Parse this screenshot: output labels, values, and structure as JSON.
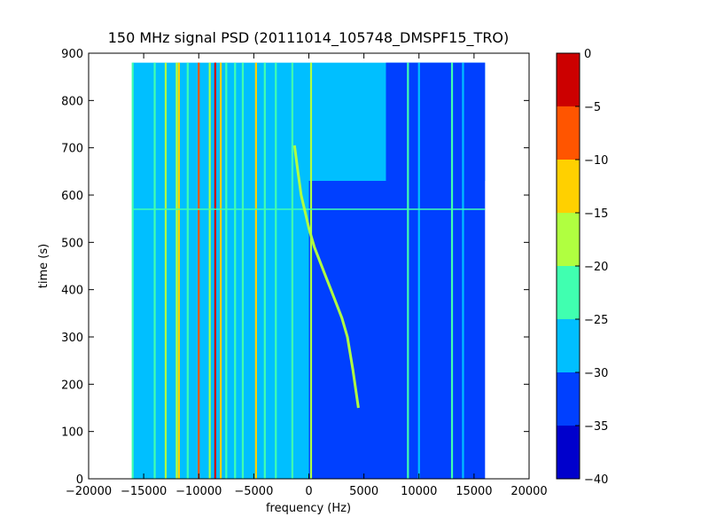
{
  "chart_data": {
    "type": "heatmap",
    "title": "150 MHz signal PSD (20111014_105748_DMSPF15_TRO)",
    "xlabel": "frequency (Hz)",
    "ylabel": "time (s)",
    "xlim": [
      -20000,
      20000
    ],
    "ylim": [
      0,
      900
    ],
    "xticks": [
      -20000,
      -15000,
      -10000,
      -5000,
      0,
      5000,
      10000,
      15000,
      20000
    ],
    "yticks": [
      0,
      100,
      200,
      300,
      400,
      500,
      600,
      700,
      800,
      900
    ],
    "data_extent": {
      "freq_hz": [
        -16000,
        16000
      ],
      "time_s": [
        0,
        880
      ]
    },
    "grid": false,
    "colorbar": {
      "range": [
        -40,
        0
      ],
      "ticks": [
        0,
        -5,
        -10,
        -15,
        -20,
        -25,
        -30,
        -35,
        -40
      ],
      "levels": [
        {
          "from": -40,
          "to": -35,
          "color": "#0000cc"
        },
        {
          "from": -35,
          "to": -30,
          "color": "#0040ff"
        },
        {
          "from": -30,
          "to": -25,
          "color": "#00bfff"
        },
        {
          "from": -25,
          "to": -20,
          "color": "#40ffb0"
        },
        {
          "from": -20,
          "to": -15,
          "color": "#b0ff40"
        },
        {
          "from": -15,
          "to": -10,
          "color": "#ffd000"
        },
        {
          "from": -10,
          "to": -5,
          "color": "#ff5500"
        },
        {
          "from": -5,
          "to": 0,
          "color": "#cc0000"
        }
      ]
    },
    "background_regions": [
      {
        "freq_hz": [
          -16000,
          16000
        ],
        "time_s": [
          630,
          880
        ],
        "level_db": -28
      },
      {
        "freq_hz": [
          -16000,
          0
        ],
        "time_s": [
          0,
          630
        ],
        "level_db": -28
      },
      {
        "freq_hz": [
          0,
          16000
        ],
        "time_s": [
          0,
          630
        ],
        "level_db": -33
      },
      {
        "freq_hz": [
          7000,
          16000
        ],
        "time_s": [
          630,
          880
        ],
        "level_db": -33
      }
    ],
    "series": [
      {
        "type": "vertical_line",
        "freq_hz": -16000,
        "time_s": [
          0,
          880
        ],
        "level_db": -22
      },
      {
        "type": "vertical_line",
        "freq_hz": -14000,
        "time_s": [
          0,
          880
        ],
        "level_db": -22
      },
      {
        "type": "vertical_line",
        "freq_hz": -13000,
        "time_s": [
          0,
          880
        ],
        "level_db": -18
      },
      {
        "type": "vertical_line",
        "freq_hz": -12000,
        "time_s": [
          0,
          880
        ],
        "level_db": -17
      },
      {
        "type": "vertical_line",
        "freq_hz": -11800,
        "time_s": [
          0,
          880
        ],
        "level_db": -14
      },
      {
        "type": "vertical_line",
        "freq_hz": -11000,
        "time_s": [
          0,
          880
        ],
        "level_db": -22
      },
      {
        "type": "vertical_line",
        "freq_hz": -10000,
        "time_s": [
          0,
          880
        ],
        "level_db": -8
      },
      {
        "type": "vertical_line",
        "freq_hz": -9000,
        "time_s": [
          0,
          880
        ],
        "level_db": -18
      },
      {
        "type": "vertical_line",
        "freq_hz": -8500,
        "time_s": [
          0,
          880
        ],
        "level_db": -3
      },
      {
        "type": "vertical_line",
        "freq_hz": -8000,
        "time_s": [
          0,
          880
        ],
        "level_db": -12
      },
      {
        "type": "vertical_line",
        "freq_hz": -7500,
        "time_s": [
          0,
          880
        ],
        "level_db": -22
      },
      {
        "type": "vertical_line",
        "freq_hz": -6700,
        "time_s": [
          0,
          880
        ],
        "level_db": -22
      },
      {
        "type": "vertical_line",
        "freq_hz": -6000,
        "time_s": [
          0,
          880
        ],
        "level_db": -22
      },
      {
        "type": "vertical_line",
        "freq_hz": -4800,
        "time_s": [
          0,
          880
        ],
        "level_db": -13
      },
      {
        "type": "vertical_line",
        "freq_hz": -4000,
        "time_s": [
          0,
          880
        ],
        "level_db": -22
      },
      {
        "type": "vertical_line",
        "freq_hz": -3000,
        "time_s": [
          0,
          880
        ],
        "level_db": -22
      },
      {
        "type": "vertical_line",
        "freq_hz": -1500,
        "time_s": [
          0,
          880
        ],
        "level_db": -22
      },
      {
        "type": "vertical_line",
        "freq_hz": 200,
        "time_s": [
          0,
          880
        ],
        "level_db": -18
      },
      {
        "type": "vertical_line",
        "freq_hz": 9000,
        "time_s": [
          0,
          880
        ],
        "level_db": -22
      },
      {
        "type": "vertical_line",
        "freq_hz": 10000,
        "time_s": [
          0,
          880
        ],
        "level_db": -26
      },
      {
        "type": "vertical_line",
        "freq_hz": 13000,
        "time_s": [
          0,
          880
        ],
        "level_db": -22
      },
      {
        "type": "vertical_line",
        "freq_hz": 14000,
        "time_s": [
          0,
          880
        ],
        "level_db": -26
      },
      {
        "type": "horizontal_line",
        "time_s": 570,
        "freq_hz": [
          -16000,
          16000
        ],
        "level_db": -22
      },
      {
        "type": "doppler_curve",
        "level_db": -20,
        "points": [
          [
            -1300,
            705
          ],
          [
            -1000,
            650
          ],
          [
            -700,
            600
          ],
          [
            -300,
            560
          ],
          [
            0,
            530
          ],
          [
            500,
            490
          ],
          [
            1000,
            460
          ],
          [
            1500,
            430
          ],
          [
            2000,
            400
          ],
          [
            2500,
            370
          ],
          [
            3000,
            340
          ],
          [
            3500,
            300
          ],
          [
            4000,
            230
          ],
          [
            4500,
            150
          ]
        ]
      }
    ]
  }
}
